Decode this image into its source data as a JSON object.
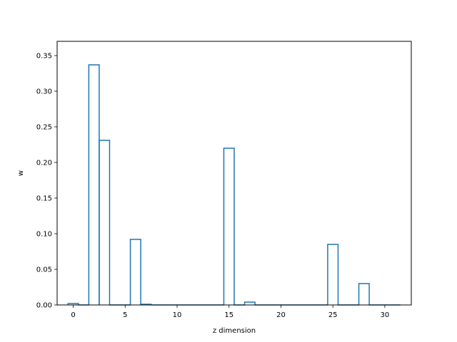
{
  "chart_data": {
    "type": "bar",
    "style": "step-outline",
    "x": [
      0,
      1,
      2,
      3,
      4,
      5,
      6,
      7,
      8,
      9,
      10,
      11,
      12,
      13,
      14,
      15,
      16,
      17,
      18,
      19,
      20,
      21,
      22,
      23,
      24,
      25,
      26,
      27,
      28,
      29,
      30,
      31
    ],
    "values": [
      0.002,
      0.0,
      0.337,
      0.231,
      0.0,
      0.0,
      0.092,
      0.001,
      0.0,
      0.0,
      0.0,
      0.0,
      0.0,
      0.0,
      0.0,
      0.22,
      0.0,
      0.004,
      0.0,
      0.0,
      0.0,
      0.0,
      0.0,
      0.0,
      0.0,
      0.085,
      0.0,
      0.0,
      0.03,
      0.0,
      0.0,
      0.0
    ],
    "xlabel": "z dimension",
    "ylabel": "w",
    "xlim": [
      -1.55,
      32.55
    ],
    "ylim": [
      0,
      0.37
    ],
    "xticks": [
      0,
      5,
      10,
      15,
      20,
      25,
      30
    ],
    "xtick_labels": [
      "0",
      "5",
      "10",
      "15",
      "20",
      "25",
      "30"
    ],
    "yticks": [
      0,
      0.05,
      0.1,
      0.15,
      0.2,
      0.25,
      0.3,
      0.35
    ],
    "ytick_labels": [
      "0.00",
      "0.05",
      "0.10",
      "0.15",
      "0.20",
      "0.25",
      "0.30",
      "0.35"
    ],
    "grid": false,
    "color": "#1f77b4"
  }
}
